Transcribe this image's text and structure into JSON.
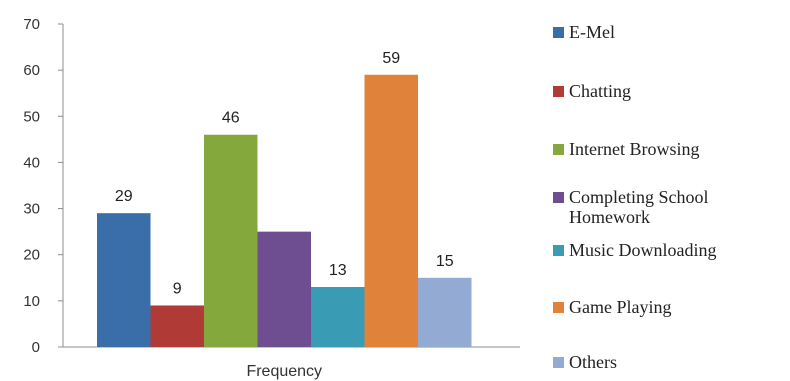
{
  "chart_data": {
    "type": "bar",
    "title": "",
    "categories": [
      "Frequency"
    ],
    "xlabel": "",
    "ylabel": "",
    "ylim": [
      0,
      70
    ],
    "yticks": [
      0,
      10,
      20,
      30,
      40,
      50,
      60,
      70
    ],
    "grid": false,
    "legend_position": "right",
    "series": [
      {
        "name": "E-Mel",
        "values": [
          29
        ],
        "color": "#3a6ea8"
      },
      {
        "name": "Chatting",
        "values": [
          9
        ],
        "color": "#b03a36"
      },
      {
        "name": "Internet Browsing",
        "values": [
          46
        ],
        "color": "#84a83c"
      },
      {
        "name": "Completing School Homework",
        "values": [
          25
        ],
        "color": "#6f4d91"
      },
      {
        "name": "Music Downloading",
        "values": [
          13
        ],
        "color": "#3a9bb5"
      },
      {
        "name": "Game Playing",
        "values": [
          59
        ],
        "color": "#e0823a"
      },
      {
        "name": "Others",
        "values": [
          15
        ],
        "color": "#93abd3"
      }
    ],
    "data_labels": [
      "29",
      "9",
      "46",
      "",
      "13",
      "59",
      "15"
    ]
  }
}
